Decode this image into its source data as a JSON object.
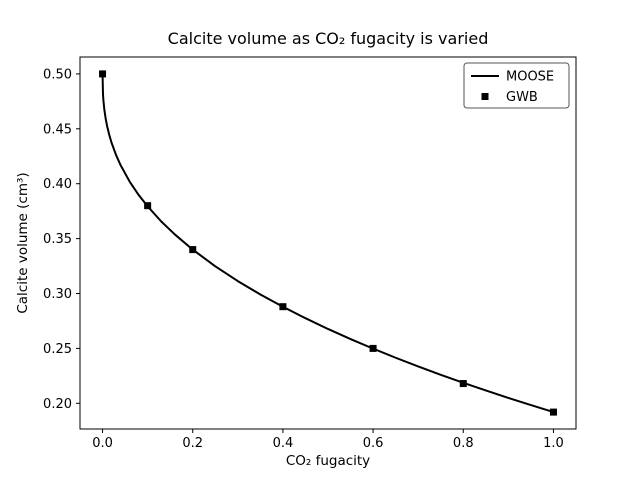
{
  "chart_data": {
    "type": "line",
    "title": "Calcite volume as CO₂ fugacity is varied",
    "xlabel": "CO₂ fugacity",
    "ylabel": "Calcite volume (cm³)",
    "xlim": [
      -0.05,
      1.05
    ],
    "ylim": [
      0.1766,
      0.5154
    ],
    "xticks": [
      0.0,
      0.2,
      0.4,
      0.6,
      0.8,
      1.0
    ],
    "xtick_labels": [
      "0.0",
      "0.2",
      "0.4",
      "0.6",
      "0.8",
      "1.0"
    ],
    "yticks": [
      0.2,
      0.25,
      0.3,
      0.35,
      0.4,
      0.45,
      0.5
    ],
    "ytick_labels": [
      "0.20",
      "0.25",
      "0.30",
      "0.35",
      "0.40",
      "0.45",
      "0.50"
    ],
    "grid": false,
    "colors": {
      "line": "#000000",
      "marker": "#000000",
      "axes": "#000000",
      "background": "#ffffff",
      "legend_border": "#555555"
    },
    "legend": {
      "position": "upper right",
      "entries": [
        {
          "label": "MOOSE",
          "type": "line"
        },
        {
          "label": "GWB",
          "type": "square-marker"
        }
      ]
    },
    "series": [
      {
        "name": "MOOSE",
        "type": "line",
        "color": "#000000",
        "linewidth": 2,
        "x": [
          0,
          0.001,
          0.002,
          0.004,
          0.007,
          0.01,
          0.015,
          0.02,
          0.03,
          0.04,
          0.06,
          0.08,
          0.1,
          0.13,
          0.16,
          0.2,
          0.25,
          0.3,
          0.35,
          0.4,
          0.45,
          0.5,
          0.55,
          0.6,
          0.65,
          0.7,
          0.75,
          0.8,
          0.85,
          0.9,
          0.95,
          1.0
        ],
        "y": [
          0.5,
          0.4815,
          0.4755,
          0.4674,
          0.4591,
          0.4527,
          0.4443,
          0.4373,
          0.4261,
          0.4169,
          0.402,
          0.3898,
          0.3794,
          0.3657,
          0.3539,
          0.34,
          0.3248,
          0.3113,
          0.2991,
          0.2879,
          0.2775,
          0.2677,
          0.2585,
          0.2498,
          0.2415,
          0.2336,
          0.226,
          0.2187,
          0.2117,
          0.2049,
          0.1984,
          0.192
        ]
      },
      {
        "name": "GWB",
        "type": "scatter",
        "marker": "square",
        "color": "#000000",
        "x": [
          0.0,
          0.1,
          0.2,
          0.4,
          0.6,
          0.8,
          1.0
        ],
        "y": [
          0.5,
          0.38,
          0.34,
          0.288,
          0.25,
          0.218,
          0.192
        ]
      }
    ]
  }
}
